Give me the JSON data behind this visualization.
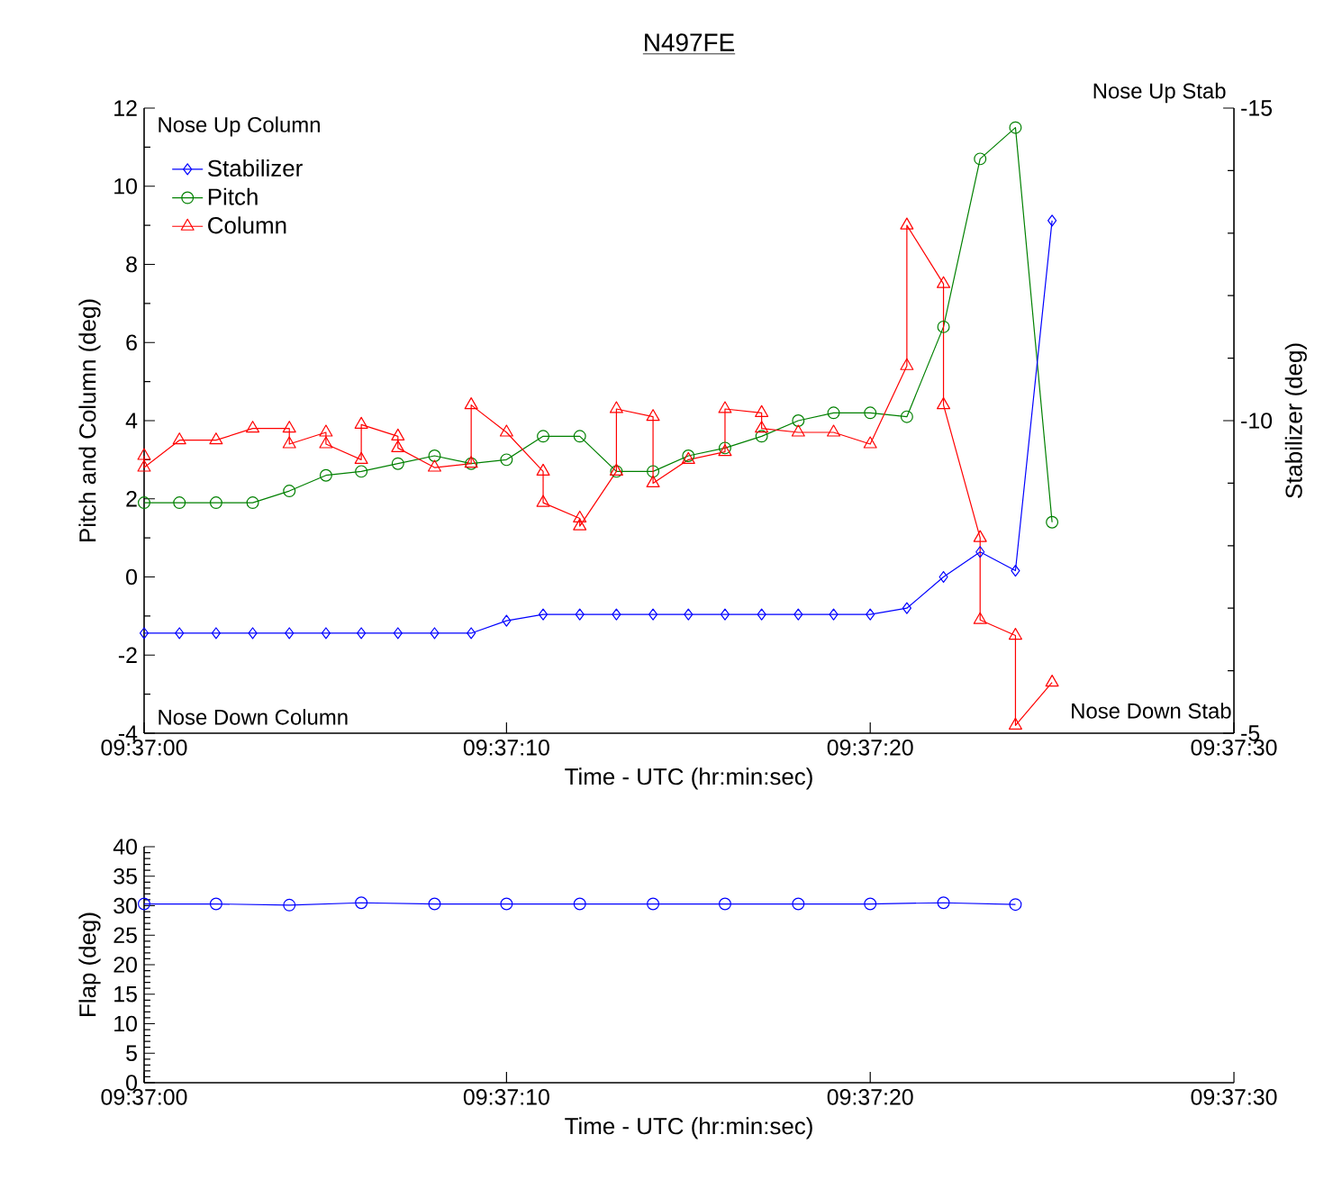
{
  "chart_data": [
    {
      "type": "line",
      "title": "N497FE",
      "xlabel": "Time - UTC (hr:min:sec)",
      "ylabel": "Pitch and Column (deg)",
      "y2label": "Stabilizer (deg)",
      "annotations": [
        "Nose Up Column",
        "Nose Down Column",
        "Nose Up Stab",
        "Nose Down Stab"
      ],
      "xlim": [
        9.61667,
        9.625
      ],
      "xticks": [
        {
          "value": 9.61667,
          "label": "09:37:00"
        },
        {
          "value": 9.61944,
          "label": "09:37:10"
        },
        {
          "value": 9.62222,
          "label": "09:37:20"
        },
        {
          "value": 9.625,
          "label": "09:37:30"
        }
      ],
      "ylim": [
        -4,
        12
      ],
      "yticks": [
        -4,
        -2,
        0,
        2,
        4,
        6,
        8,
        10,
        12
      ],
      "y2lim": [
        -5,
        -15
      ],
      "y2ticks": [
        -15,
        -10,
        -5
      ],
      "legend": "top left",
      "series": [
        {
          "name": "Stabilizer",
          "color": "#0000ff",
          "marker": "diamond",
          "axis": "y2",
          "x": [
            9.61667,
            9.61694,
            9.61722,
            9.6175,
            9.61778,
            9.61806,
            9.61833,
            9.61861,
            9.61889,
            9.61917,
            9.61944,
            9.61972,
            9.62,
            9.62028,
            9.62056,
            9.62083,
            9.62111,
            9.62139,
            9.62167,
            9.62194,
            9.62222,
            9.6225,
            9.62278,
            9.62306,
            9.62333,
            9.62361
          ],
          "values": [
            -6.6,
            -6.6,
            -6.6,
            -6.6,
            -6.6,
            -6.6,
            -6.6,
            -6.6,
            -6.6,
            -6.6,
            -6.8,
            -6.9,
            -6.9,
            -6.9,
            -6.9,
            -6.9,
            -6.9,
            -6.9,
            -6.9,
            -6.9,
            -6.9,
            -7.0,
            -7.5,
            -7.9,
            -7.6,
            -13.2
          ]
        },
        {
          "name": "Pitch",
          "color": "#008000",
          "marker": "circle",
          "x": [
            9.61667,
            9.61694,
            9.61722,
            9.6175,
            9.61778,
            9.61806,
            9.61833,
            9.61861,
            9.61889,
            9.61917,
            9.61944,
            9.61972,
            9.62,
            9.62028,
            9.62056,
            9.62083,
            9.62111,
            9.62139,
            9.62167,
            9.62194,
            9.62222,
            9.6225,
            9.62278,
            9.62306,
            9.62333,
            9.62361
          ],
          "values": [
            1.9,
            1.9,
            1.9,
            1.9,
            2.2,
            2.6,
            2.7,
            2.9,
            3.1,
            2.9,
            3.0,
            3.6,
            3.6,
            2.7,
            2.7,
            3.1,
            3.3,
            3.6,
            4.0,
            4.2,
            4.2,
            4.1,
            6.4,
            10.7,
            11.5,
            1.4
          ]
        },
        {
          "name": "Column",
          "color": "#ff0000",
          "marker": "triangle",
          "x": [
            9.61667,
            9.61667,
            9.61694,
            9.61722,
            9.6175,
            9.61778,
            9.61778,
            9.61806,
            9.61806,
            9.61833,
            9.61833,
            9.61861,
            9.61861,
            9.61889,
            9.61917,
            9.61917,
            9.61944,
            9.61972,
            9.61972,
            9.62,
            9.62,
            9.62028,
            9.62028,
            9.62056,
            9.62056,
            9.62083,
            9.62111,
            9.62111,
            9.62139,
            9.62139,
            9.62167,
            9.62194,
            9.62222,
            9.6225,
            9.6225,
            9.62278,
            9.62278,
            9.62306,
            9.62306,
            9.62333,
            9.62333,
            9.62361
          ],
          "values": [
            3.1,
            2.8,
            3.5,
            3.5,
            3.8,
            3.8,
            3.4,
            3.7,
            3.4,
            3.0,
            3.9,
            3.6,
            3.3,
            2.8,
            2.9,
            4.4,
            3.7,
            2.7,
            1.9,
            1.5,
            1.3,
            2.7,
            4.3,
            4.1,
            2.4,
            3.0,
            3.2,
            4.3,
            4.2,
            3.8,
            3.7,
            3.7,
            3.4,
            5.4,
            9.0,
            7.5,
            4.4,
            1.0,
            -1.1,
            -1.5,
            -3.8,
            -2.7
          ]
        }
      ]
    },
    {
      "type": "line",
      "xlabel": "Time - UTC (hr:min:sec)",
      "ylabel": "Flap (deg)",
      "xlim": [
        9.61667,
        9.625
      ],
      "xticks": [
        {
          "value": 9.61667,
          "label": "09:37:00"
        },
        {
          "value": 9.61944,
          "label": "09:37:10"
        },
        {
          "value": 9.62222,
          "label": "09:37:20"
        },
        {
          "value": 9.625,
          "label": "09:37:30"
        }
      ],
      "ylim": [
        0,
        40
      ],
      "yticks": [
        0,
        5,
        10,
        15,
        20,
        25,
        30,
        35,
        40
      ],
      "series": [
        {
          "color": "#0000ff",
          "marker": "circle",
          "x": [
            9.61667,
            9.61722,
            9.61778,
            9.61833,
            9.61889,
            9.61944,
            9.62,
            9.62056,
            9.62111,
            9.62167,
            9.62222,
            9.62278,
            9.62333
          ],
          "values": [
            30.3,
            30.3,
            30.1,
            30.5,
            30.3,
            30.3,
            30.3,
            30.3,
            30.3,
            30.3,
            30.3,
            30.5,
            30.2
          ]
        }
      ]
    }
  ]
}
